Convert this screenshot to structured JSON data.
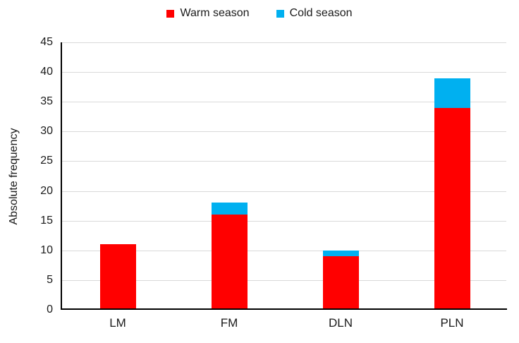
{
  "chart_data": {
    "type": "bar",
    "stacked": true,
    "categories": [
      "LM",
      "FM",
      "DLN",
      "PLN"
    ],
    "series": [
      {
        "name": "Warm season",
        "color": "#FF0000",
        "values": [
          11,
          16,
          9,
          34
        ]
      },
      {
        "name": "Cold season",
        "color": "#00B0F0",
        "values": [
          0,
          2,
          1,
          5
        ]
      }
    ],
    "ylabel": "Absolute frequency",
    "ylim": [
      0,
      45
    ],
    "yticks": [
      0,
      5,
      10,
      15,
      20,
      25,
      30,
      35,
      40,
      45
    ],
    "grid": true,
    "legend_position": "top"
  },
  "colors": {
    "gridline": "#D9D9D9",
    "axis": "#000000",
    "text": "#1A1A1A",
    "background": "#FFFFFF"
  }
}
